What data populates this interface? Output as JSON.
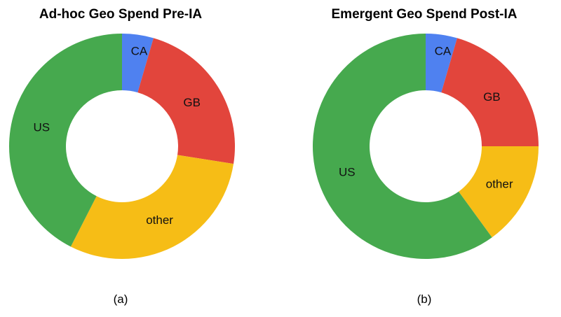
{
  "chart_data": [
    {
      "type": "pie",
      "title": "Ad-hoc Geo Spend Pre-IA",
      "caption": "(a)",
      "donut": true,
      "slices": [
        {
          "label": "CA",
          "value": 4.5,
          "color": "#4f81f0"
        },
        {
          "label": "GB",
          "value": 23,
          "color": "#e2453c"
        },
        {
          "label": "other",
          "value": 30,
          "color": "#f6bd16"
        },
        {
          "label": "US",
          "value": 42.5,
          "color": "#46a94e"
        }
      ]
    },
    {
      "type": "pie",
      "title": "Emergent Geo Spend Post-IA",
      "caption": "(b)",
      "donut": true,
      "slices": [
        {
          "label": "CA",
          "value": 4.5,
          "color": "#4f81f0"
        },
        {
          "label": "GB",
          "value": 20.5,
          "color": "#e2453c"
        },
        {
          "label": "other",
          "value": 15,
          "color": "#f6bd16"
        },
        {
          "label": "US",
          "value": 60,
          "color": "#46a94e"
        }
      ]
    }
  ]
}
